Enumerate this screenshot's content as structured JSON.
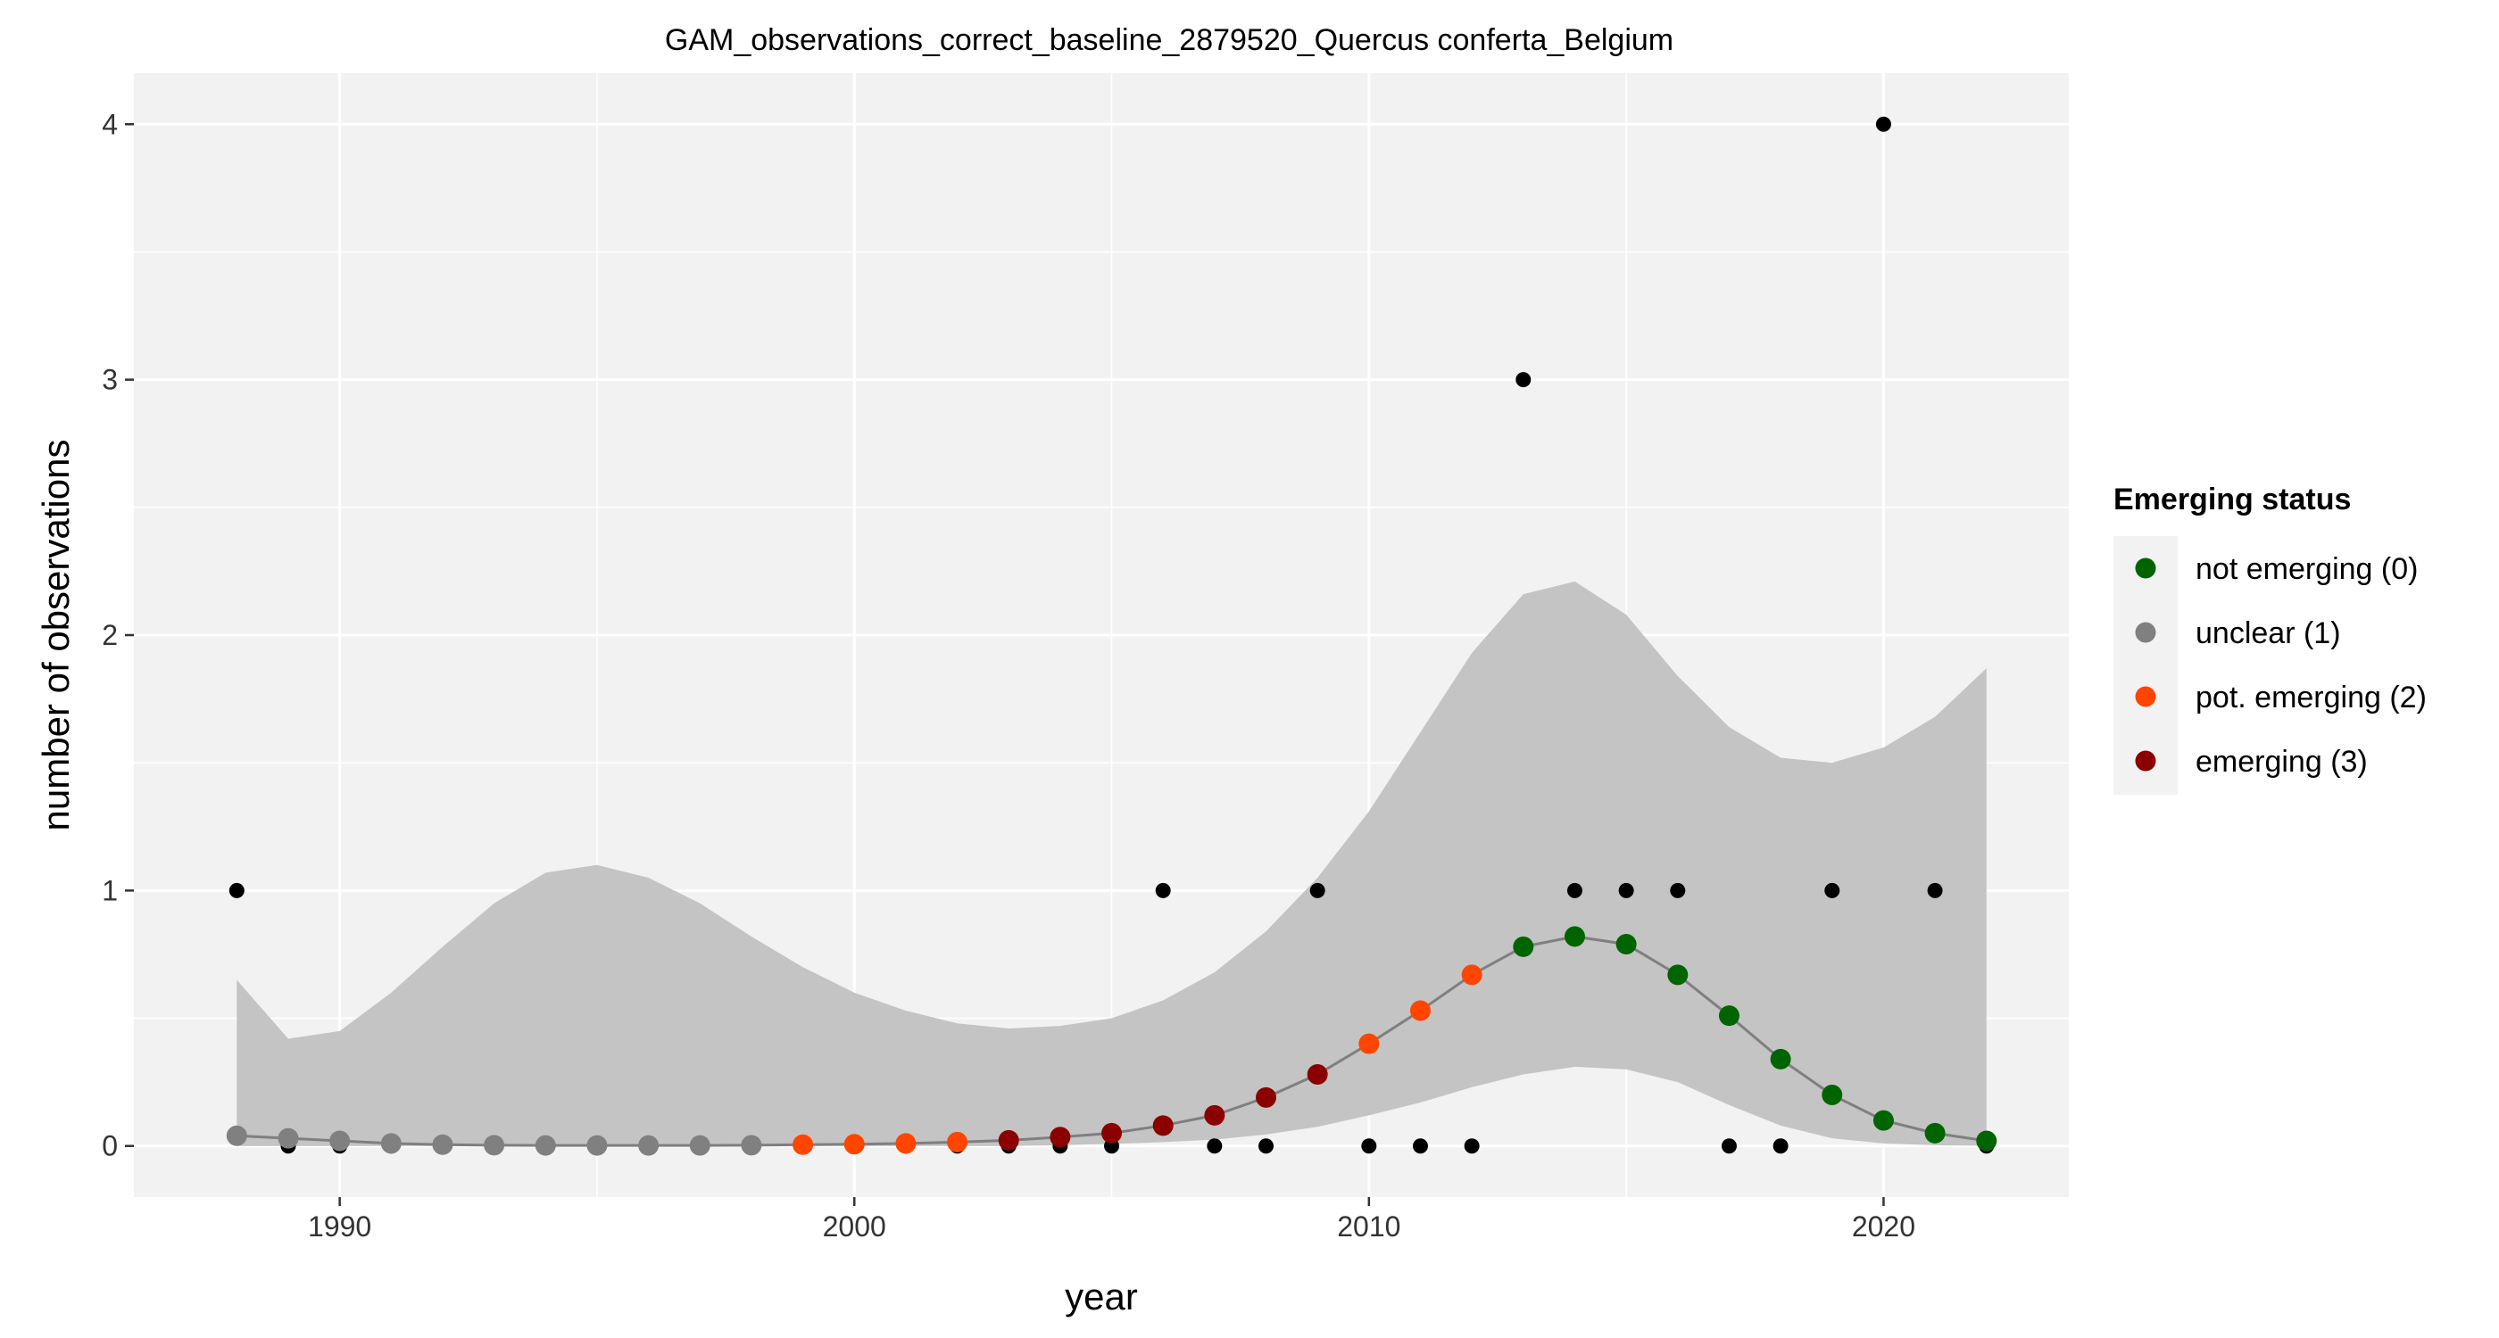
{
  "chart_data": {
    "type": "scatter",
    "title": "GAM_observations_correct_baseline_2879520_Quercus conferta_Belgium",
    "xlabel": "year",
    "ylabel": "number of observations",
    "xlim": [
      1986,
      2023.6
    ],
    "ylim": [
      -0.2,
      4.2
    ],
    "x_ticks": [
      1990,
      2000,
      2010,
      2020
    ],
    "y_ticks": [
      0,
      1,
      2,
      3,
      4
    ],
    "x_tick_labels": [
      "1990",
      "2000",
      "2010",
      "2020"
    ],
    "y_tick_labels": [
      "0",
      "1",
      "2",
      "3",
      "4"
    ],
    "grid": true,
    "legend_position": "right",
    "legend": {
      "title": "Emerging status",
      "entries": [
        {
          "label": "not emerging (0)",
          "color": "#006400"
        },
        {
          "label": "unclear (1)",
          "color": "#808080"
        },
        {
          "label": "pot. emerging (2)",
          "color": "#FF4500"
        },
        {
          "label": "emerging (3)",
          "color": "#8B0000"
        }
      ]
    },
    "status_colors": [
      "#006400",
      "#808080",
      "#FF4500",
      "#8B0000"
    ],
    "observations": {
      "x": [
        1988,
        1989,
        1990,
        1991,
        1992,
        1993,
        1994,
        1995,
        1996,
        1997,
        1998,
        1999,
        2000,
        2001,
        2002,
        2003,
        2004,
        2005,
        2006,
        2007,
        2008,
        2009,
        2010,
        2011,
        2012,
        2013,
        2014,
        2015,
        2016,
        2017,
        2018,
        2019,
        2020,
        2021,
        2022
      ],
      "y": [
        1,
        0,
        0,
        0,
        0,
        0,
        0,
        0,
        0,
        0,
        0,
        0,
        0,
        0,
        0,
        0,
        0,
        0,
        1,
        0,
        0,
        1,
        0,
        0,
        0,
        3,
        1,
        1,
        1,
        0,
        0,
        1,
        4,
        1,
        0
      ]
    },
    "gam_fit": {
      "x": [
        1988,
        1989,
        1990,
        1991,
        1992,
        1993,
        1994,
        1995,
        1996,
        1997,
        1998,
        1999,
        2000,
        2001,
        2002,
        2003,
        2004,
        2005,
        2006,
        2007,
        2008,
        2009,
        2010,
        2011,
        2012,
        2013,
        2014,
        2015,
        2016,
        2017,
        2018,
        2019,
        2020,
        2021,
        2022
      ],
      "fit": [
        0.04,
        0.03,
        0.02,
        0.01,
        0.005,
        0.003,
        0.002,
        0.002,
        0.002,
        0.002,
        0.003,
        0.005,
        0.007,
        0.01,
        0.015,
        0.022,
        0.035,
        0.05,
        0.08,
        0.12,
        0.19,
        0.28,
        0.4,
        0.53,
        0.67,
        0.78,
        0.82,
        0.79,
        0.67,
        0.51,
        0.34,
        0.2,
        0.1,
        0.05,
        0.02
      ],
      "lower": [
        0,
        0,
        0,
        0,
        0,
        0,
        0,
        0,
        0,
        0,
        0,
        0,
        0,
        0,
        0,
        0,
        0.003,
        0.008,
        0.015,
        0.025,
        0.045,
        0.075,
        0.12,
        0.17,
        0.23,
        0.28,
        0.31,
        0.3,
        0.25,
        0.16,
        0.08,
        0.03,
        0.01,
        0.003,
        0.001
      ],
      "upper": [
        0.65,
        0.42,
        0.45,
        0.6,
        0.78,
        0.95,
        1.07,
        1.1,
        1.05,
        0.95,
        0.82,
        0.7,
        0.6,
        0.53,
        0.48,
        0.46,
        0.47,
        0.5,
        0.57,
        0.68,
        0.84,
        1.05,
        1.31,
        1.62,
        1.93,
        2.16,
        2.21,
        2.08,
        1.84,
        1.64,
        1.52,
        1.5,
        1.56,
        1.68,
        1.87
      ],
      "status": [
        1,
        1,
        1,
        1,
        1,
        1,
        1,
        1,
        1,
        1,
        1,
        2,
        2,
        2,
        2,
        3,
        3,
        3,
        3,
        3,
        3,
        3,
        2,
        2,
        2,
        0,
        0,
        0,
        0,
        0,
        0,
        0,
        0,
        0,
        0
      ]
    }
  }
}
